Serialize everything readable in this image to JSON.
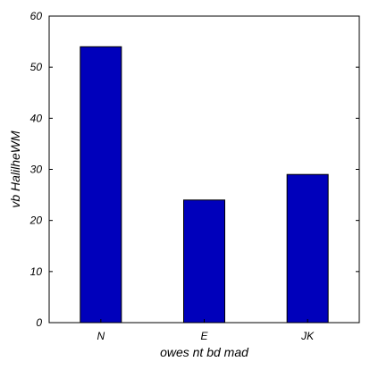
{
  "chart_data": {
    "type": "bar",
    "categories": [
      "N",
      "E",
      "JK"
    ],
    "values": [
      54,
      24,
      29
    ],
    "title": "",
    "xlabel": "owes nt bd mad",
    "ylabel": "vb HalilheWM",
    "ylim": [
      0,
      60
    ],
    "yticks": [
      0,
      10,
      20,
      30,
      40,
      50,
      60
    ],
    "bar_color": "#0000bb",
    "grid": false,
    "legend": "none"
  }
}
